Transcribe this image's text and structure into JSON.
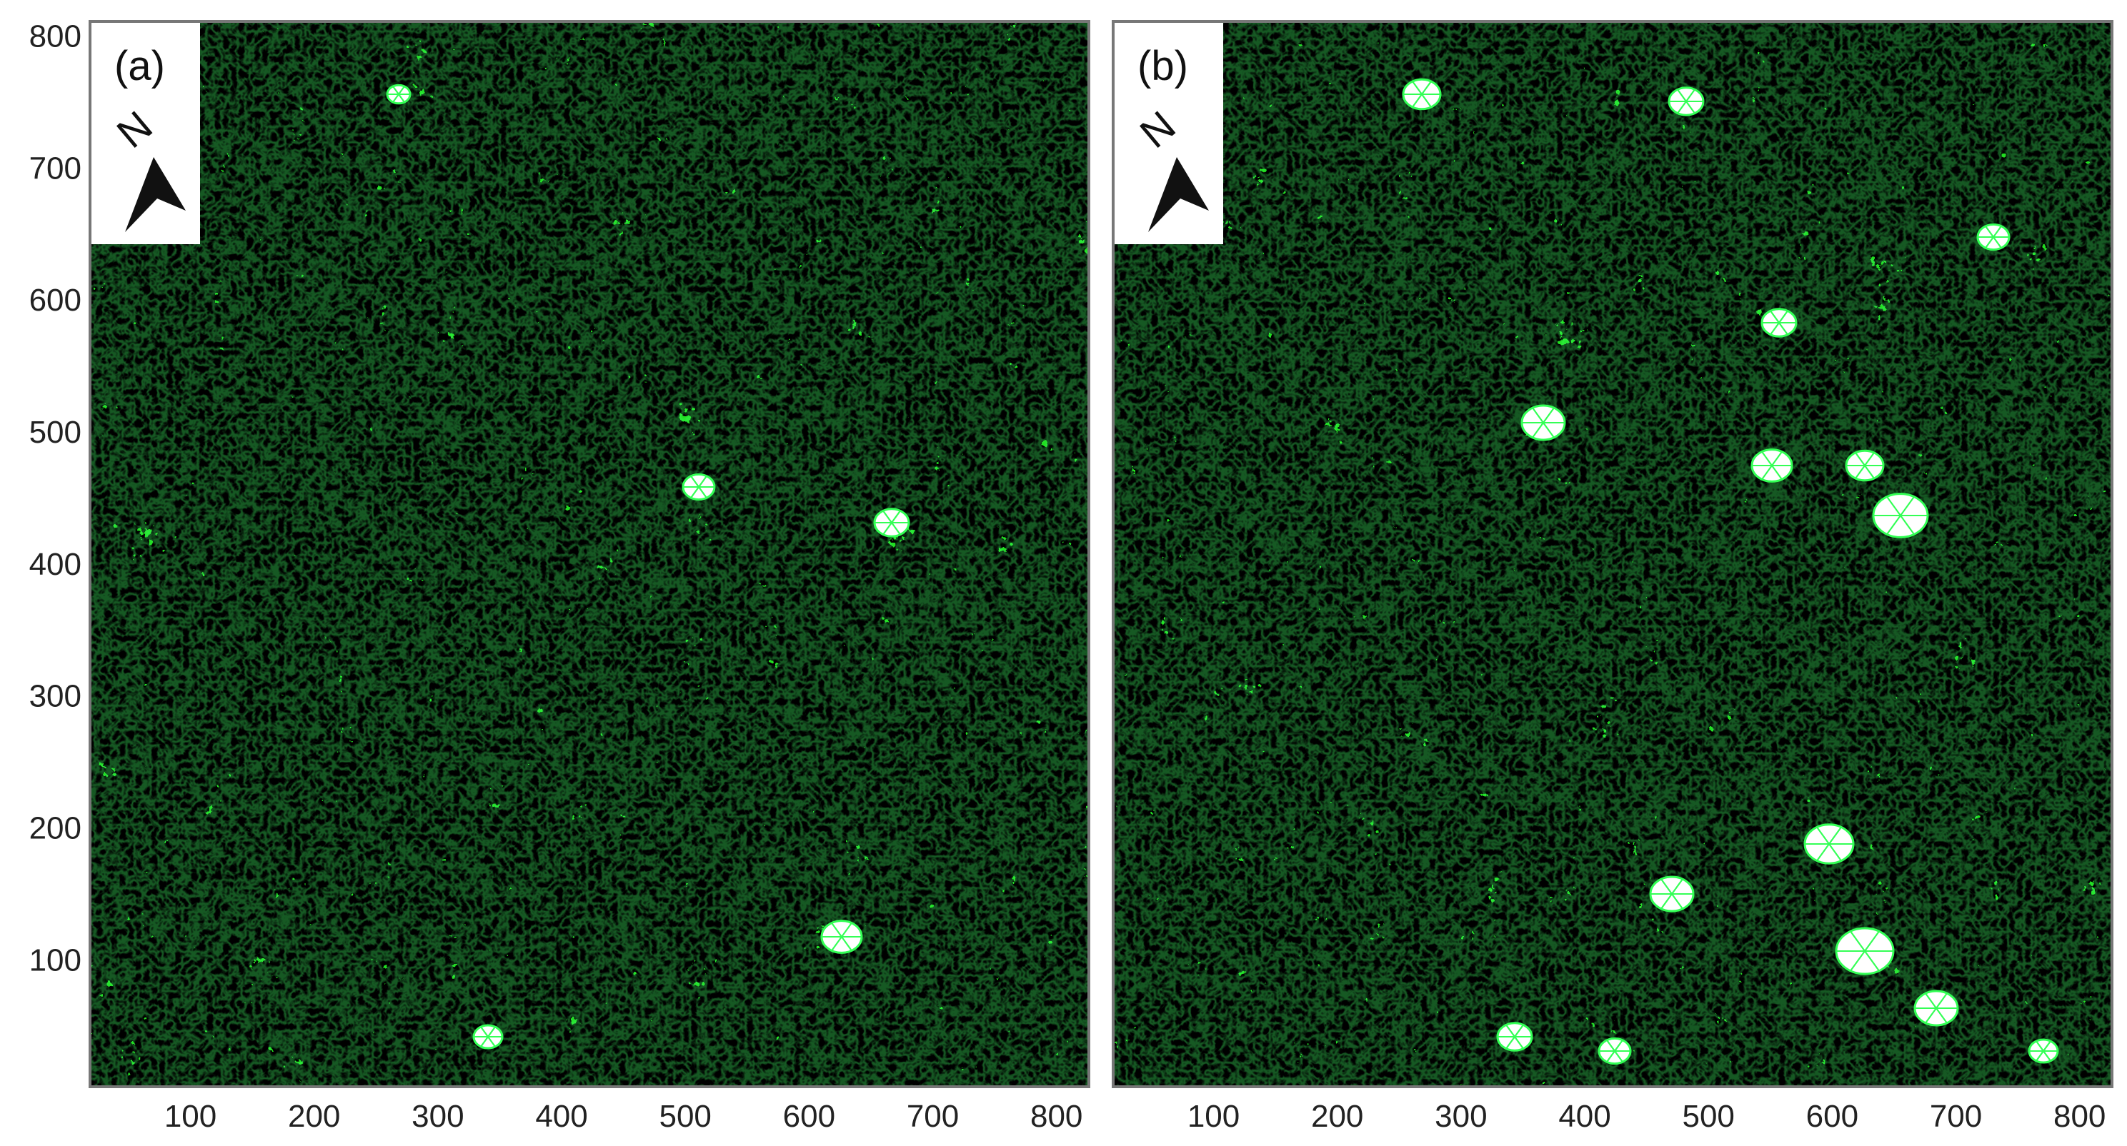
{
  "figure": {
    "panels": [
      {
        "label": "(a)",
        "north_label": "N",
        "line_density": 1.0,
        "open_areas": "few"
      },
      {
        "label": "(b)",
        "north_label": "N",
        "line_density": 1.0,
        "open_areas": "many"
      }
    ],
    "x_axis": {
      "ticks": [
        "100",
        "200",
        "300",
        "400",
        "500",
        "600",
        "700",
        "800"
      ],
      "range": [
        20,
        825
      ]
    },
    "y_axis": {
      "ticks": [
        "100",
        "200",
        "300",
        "400",
        "500",
        "600",
        "700",
        "800"
      ],
      "range": [
        5,
        810
      ]
    },
    "colors": {
      "background": "#000000",
      "vegetation": "#22dd22",
      "mesh_line": "#33ff55",
      "frame": "#777777",
      "legend_box": "#ffffff",
      "axis_text": "#222222"
    },
    "icons": [
      "north-arrow-icon"
    ]
  }
}
